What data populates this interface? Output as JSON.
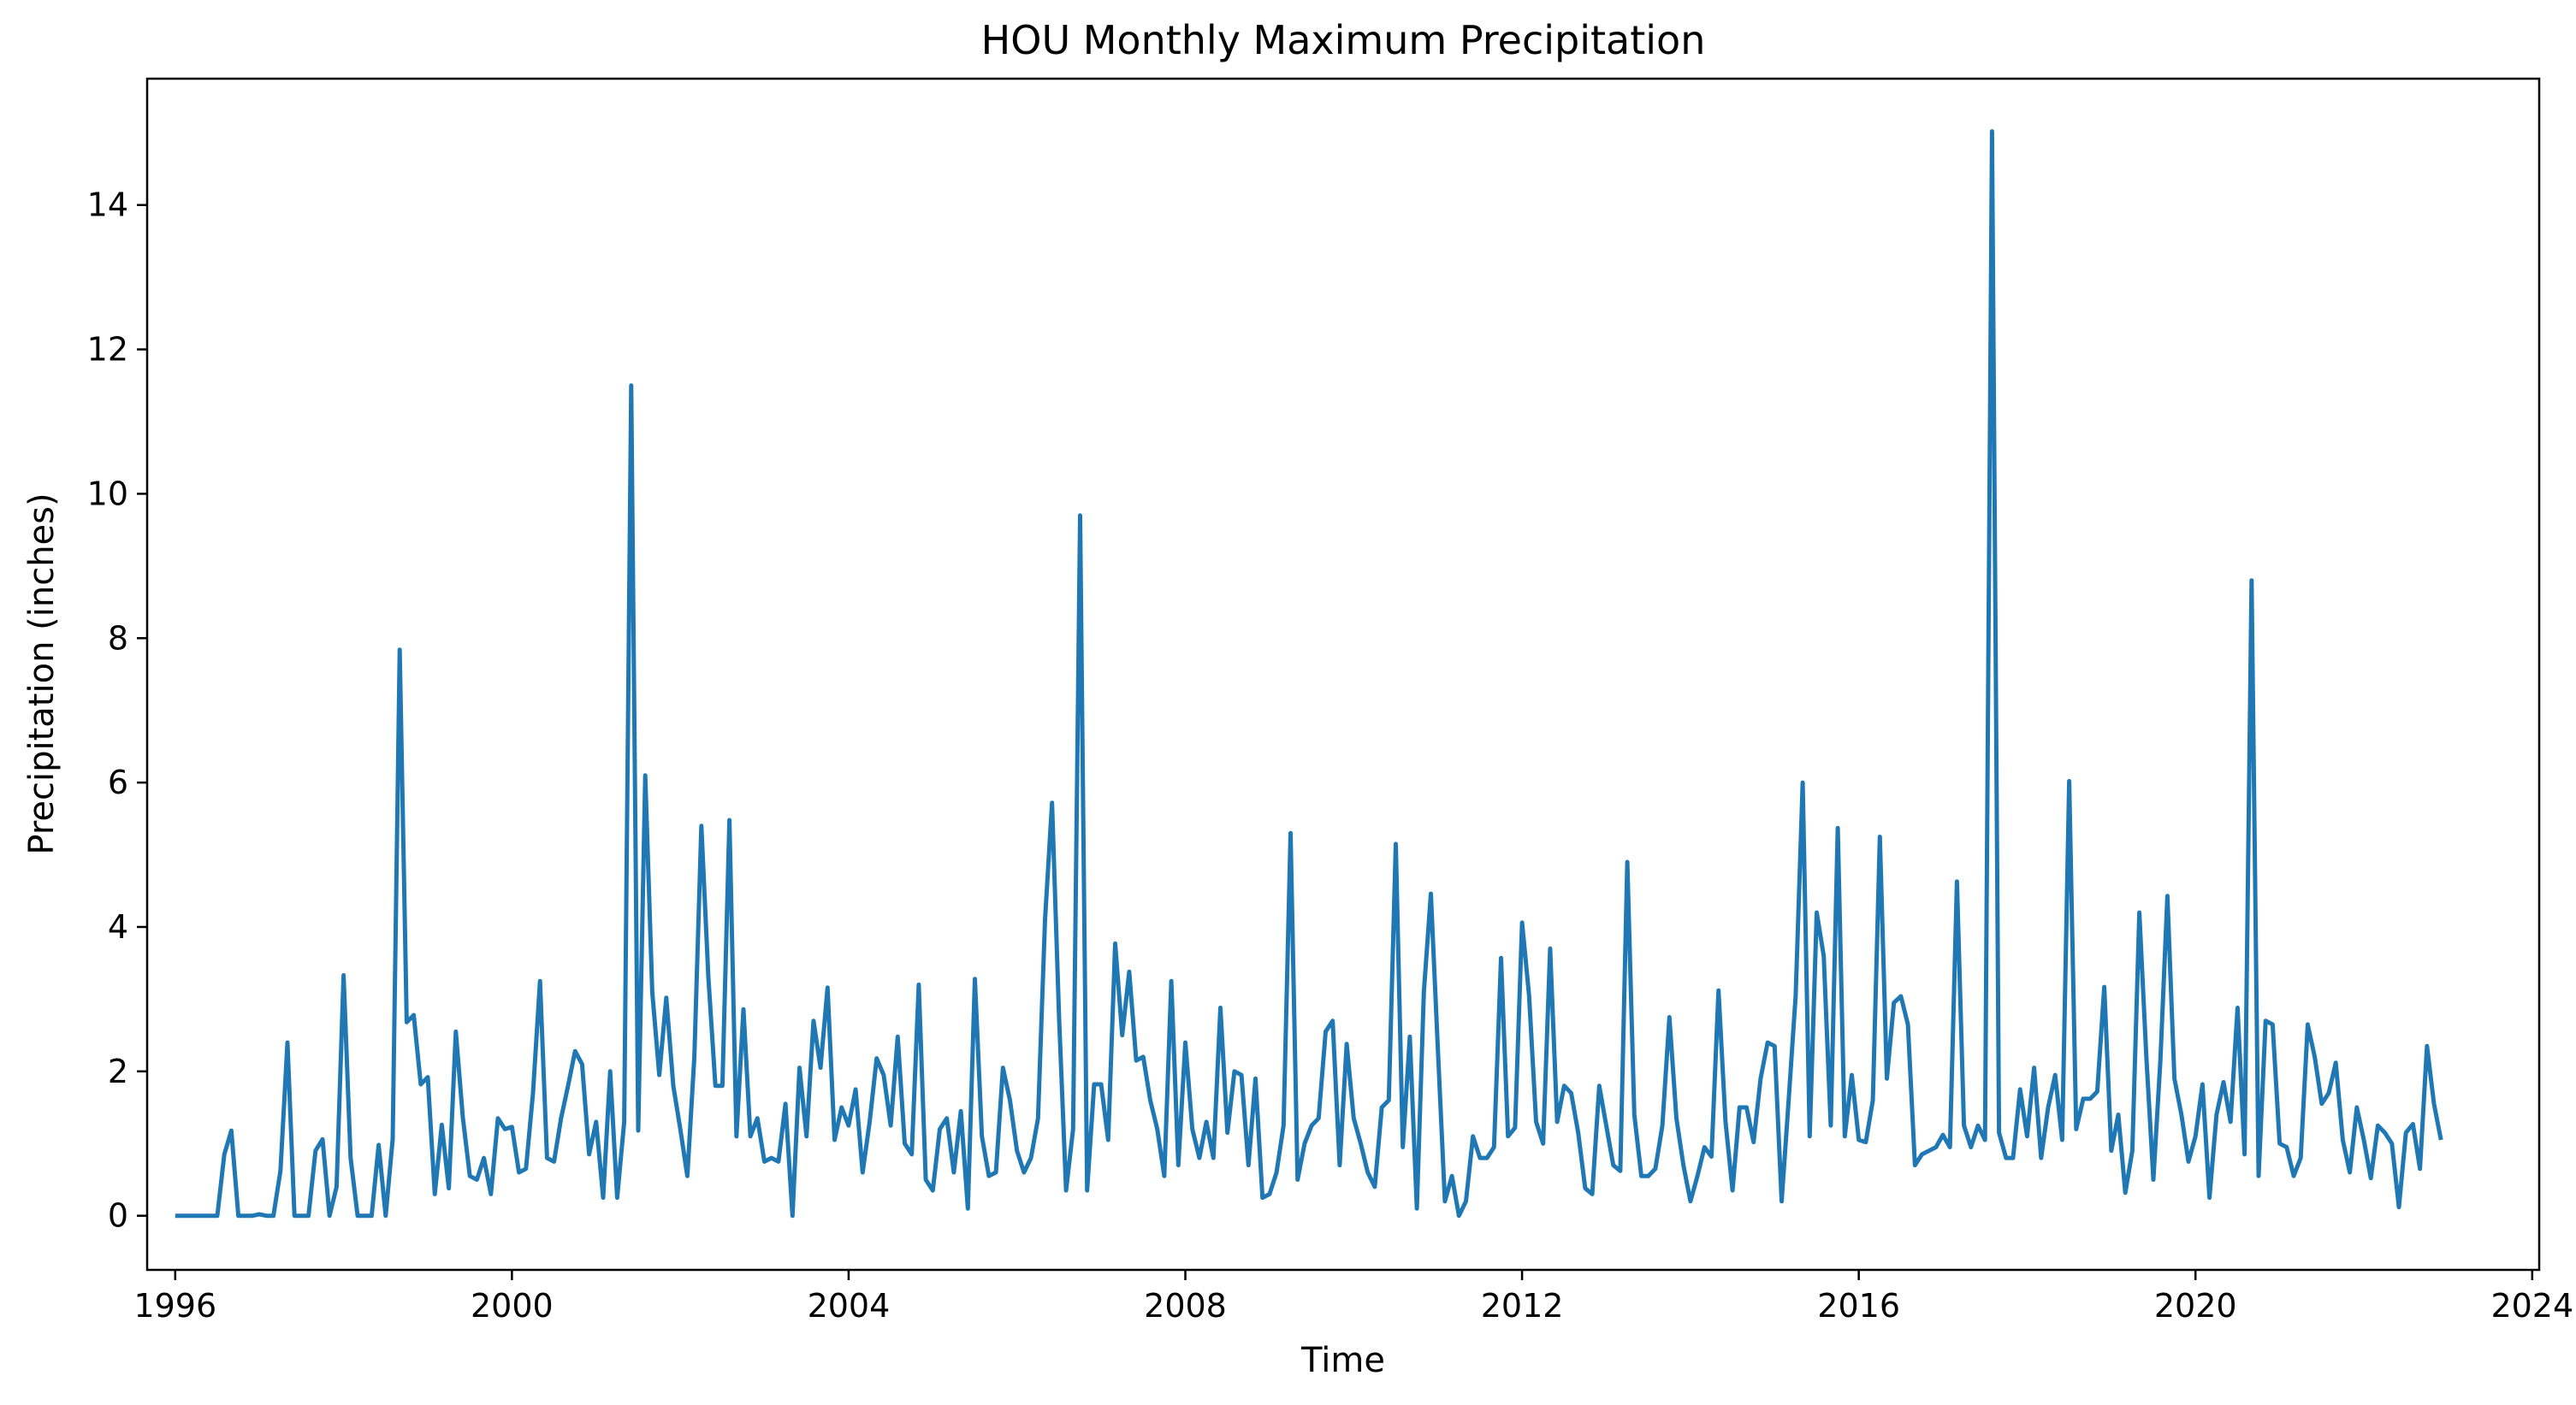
{
  "chart_data": {
    "type": "line",
    "title": "HOU Monthly Maximum Precipitation",
    "xlabel": "Time",
    "ylabel": "Precipitation (inches)",
    "xlim": [
      "1995-09",
      "2024-02"
    ],
    "ylim": [
      -0.75,
      15.75
    ],
    "x_ticks": [
      "1996",
      "2000",
      "2004",
      "2008",
      "2012",
      "2016",
      "2020",
      "2024"
    ],
    "y_ticks": [
      "0",
      "2",
      "4",
      "6",
      "8",
      "10",
      "12",
      "14"
    ],
    "grid": false,
    "legend": "none",
    "line_color": "#1f77b4",
    "series": [
      {
        "start": "1996-01",
        "frequency": "monthly",
        "values": [
          0,
          0,
          0,
          0,
          0,
          0,
          0,
          0.85,
          1.18,
          0,
          0,
          0,
          0.02,
          0,
          0,
          0.62,
          2.4,
          0,
          0,
          0,
          0.9,
          1.06,
          0,
          0.4,
          3.33,
          0.8,
          0,
          0,
          0,
          0.98,
          0,
          1.06,
          7.84,
          2.68,
          2.78,
          1.82,
          1.92,
          0.3,
          1.26,
          0.38,
          2.55,
          1.36,
          0.55,
          0.5,
          0.8,
          0.3,
          1.35,
          1.2,
          1.23,
          0.6,
          0.65,
          1.7,
          3.25,
          0.8,
          0.75,
          1.35,
          1.8,
          2.28,
          2.1,
          0.85,
          1.3,
          0.25,
          2,
          0.25,
          1.3,
          11.5,
          1.18,
          6.1,
          3.1,
          1.95,
          3.02,
          1.8,
          1.2,
          0.55,
          2.2,
          5.4,
          3.3,
          1.8,
          1.8,
          5.48,
          1.1,
          2.86,
          1.1,
          1.35,
          0.75,
          0.8,
          0.75,
          1.55,
          0,
          2.05,
          1.1,
          2.7,
          2.05,
          3.16,
          1.05,
          1.5,
          1.25,
          1.75,
          0.6,
          1.3,
          2.18,
          1.95,
          1.25,
          2.48,
          1,
          0.85,
          3.2,
          0.5,
          0.35,
          1.2,
          1.35,
          0.6,
          1.45,
          0.1,
          3.28,
          1.1,
          0.55,
          0.6,
          2.05,
          1.6,
          0.9,
          0.6,
          0.8,
          1.35,
          4.1,
          5.72,
          2.75,
          0.35,
          1.2,
          9.7,
          0.35,
          1.82,
          1.82,
          1.05,
          3.77,
          2.5,
          3.38,
          2.15,
          2.2,
          1.6,
          1.2,
          0.55,
          3.25,
          0.7,
          2.4,
          1.2,
          0.8,
          1.3,
          0.8,
          2.88,
          1.15,
          2,
          1.95,
          0.7,
          1.9,
          0.25,
          0.3,
          0.6,
          1.25,
          5.3,
          0.5,
          1,
          1.25,
          1.35,
          2.55,
          2.7,
          0.7,
          2.38,
          1.35,
          1,
          0.6,
          0.4,
          1.5,
          1.6,
          5.15,
          0.95,
          2.48,
          0.1,
          3.1,
          4.46,
          2.3,
          0.2,
          0.55,
          0,
          0.2,
          1.1,
          0.8,
          0.8,
          0.95,
          3.57,
          1.1,
          1.22,
          4.06,
          3.05,
          1.3,
          1,
          3.7,
          1.3,
          1.8,
          1.7,
          1.15,
          0.38,
          0.3,
          1.8,
          1.25,
          0.7,
          0.62,
          4.9,
          1.4,
          0.55,
          0.55,
          0.65,
          1.25,
          2.75,
          1.35,
          0.7,
          0.2,
          0.55,
          0.95,
          0.82,
          3.12,
          1.3,
          0.35,
          1.5,
          1.5,
          1.02,
          1.9,
          2.4,
          2.35,
          0.2,
          1.6,
          3.05,
          6,
          1.1,
          4.2,
          3.6,
          1.25,
          5.37,
          1.1,
          1.95,
          1.05,
          1.02,
          1.6,
          5.25,
          1.9,
          2.95,
          3.04,
          2.65,
          0.7,
          0.85,
          0.9,
          0.95,
          1.12,
          0.95,
          4.63,
          1.25,
          0.95,
          1.25,
          1.05,
          15.02,
          1.15,
          0.8,
          0.8,
          1.75,
          1.1,
          2.05,
          0.8,
          1.5,
          1.95,
          1.05,
          6.02,
          1.2,
          1.62,
          1.62,
          1.72,
          3.17,
          0.9,
          1.4,
          0.32,
          0.9,
          4.2,
          2.2,
          0.5,
          2.15,
          4.43,
          1.9,
          1.4,
          0.75,
          1.1,
          1.82,
          0.25,
          1.4,
          1.85,
          1.3,
          2.88,
          0.85,
          8.8,
          0.55,
          2.7,
          2.65,
          1,
          0.95,
          0.55,
          0.8,
          2.65,
          2.2,
          1.55,
          1.7,
          2.12,
          1.05,
          0.6,
          1.5,
          1.05,
          0.52,
          1.25,
          1.15,
          1,
          0.12,
          1.15,
          1.27,
          0.65,
          2.35,
          1.55,
          1.05
        ]
      }
    ]
  }
}
